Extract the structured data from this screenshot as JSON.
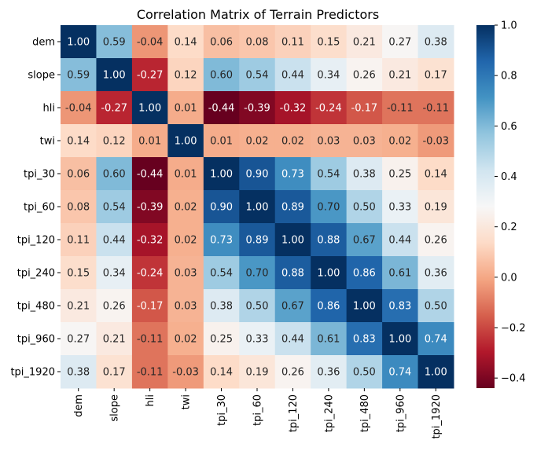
{
  "chart_data": {
    "type": "heatmap",
    "title": "Correlation Matrix of Terrain Predictors",
    "xlabel": "",
    "ylabel": "",
    "labels": [
      "dem",
      "slope",
      "hli",
      "twi",
      "tpi_30",
      "tpi_60",
      "tpi_120",
      "tpi_240",
      "tpi_480",
      "tpi_960",
      "tpi_1920"
    ],
    "values": [
      [
        1.0,
        0.59,
        -0.04,
        0.14,
        0.06,
        0.08,
        0.11,
        0.15,
        0.21,
        0.27,
        0.38
      ],
      [
        0.59,
        1.0,
        -0.27,
        0.12,
        0.6,
        0.54,
        0.44,
        0.34,
        0.26,
        0.21,
        0.17
      ],
      [
        -0.04,
        -0.27,
        1.0,
        0.01,
        -0.44,
        -0.39,
        -0.32,
        -0.24,
        -0.17,
        -0.11,
        -0.11
      ],
      [
        0.14,
        0.12,
        0.01,
        1.0,
        0.01,
        0.02,
        0.02,
        0.03,
        0.03,
        0.02,
        -0.03
      ],
      [
        0.06,
        0.6,
        -0.44,
        0.01,
        1.0,
        0.9,
        0.73,
        0.54,
        0.38,
        0.25,
        0.14
      ],
      [
        0.08,
        0.54,
        -0.39,
        0.02,
        0.9,
        1.0,
        0.89,
        0.7,
        0.5,
        0.33,
        0.19
      ],
      [
        0.11,
        0.44,
        -0.32,
        0.02,
        0.73,
        0.89,
        1.0,
        0.88,
        0.67,
        0.44,
        0.26
      ],
      [
        0.15,
        0.34,
        -0.24,
        0.03,
        0.54,
        0.7,
        0.88,
        1.0,
        0.86,
        0.61,
        0.36
      ],
      [
        0.21,
        0.26,
        -0.17,
        0.03,
        0.38,
        0.5,
        0.67,
        0.86,
        1.0,
        0.83,
        0.5
      ],
      [
        0.27,
        0.21,
        -0.11,
        0.02,
        0.25,
        0.33,
        0.44,
        0.61,
        0.83,
        1.0,
        0.74
      ],
      [
        0.38,
        0.17,
        -0.11,
        -0.03,
        0.14,
        0.19,
        0.26,
        0.36,
        0.5,
        0.74,
        1.0
      ]
    ],
    "colormap": "RdBu",
    "vmin": -0.44,
    "vmax": 1.0,
    "colorbar_ticks": [
      1.0,
      0.8,
      0.6,
      0.4,
      0.2,
      0.0,
      -0.2,
      -0.4
    ],
    "colorbar_tick_labels": [
      "1.0",
      "0.8",
      "0.6",
      "0.4",
      "0.2",
      "0.0",
      "−0.2",
      "−0.4"
    ],
    "annotation_format": "2 decimals",
    "grid": false,
    "colorbar_position": "right"
  }
}
